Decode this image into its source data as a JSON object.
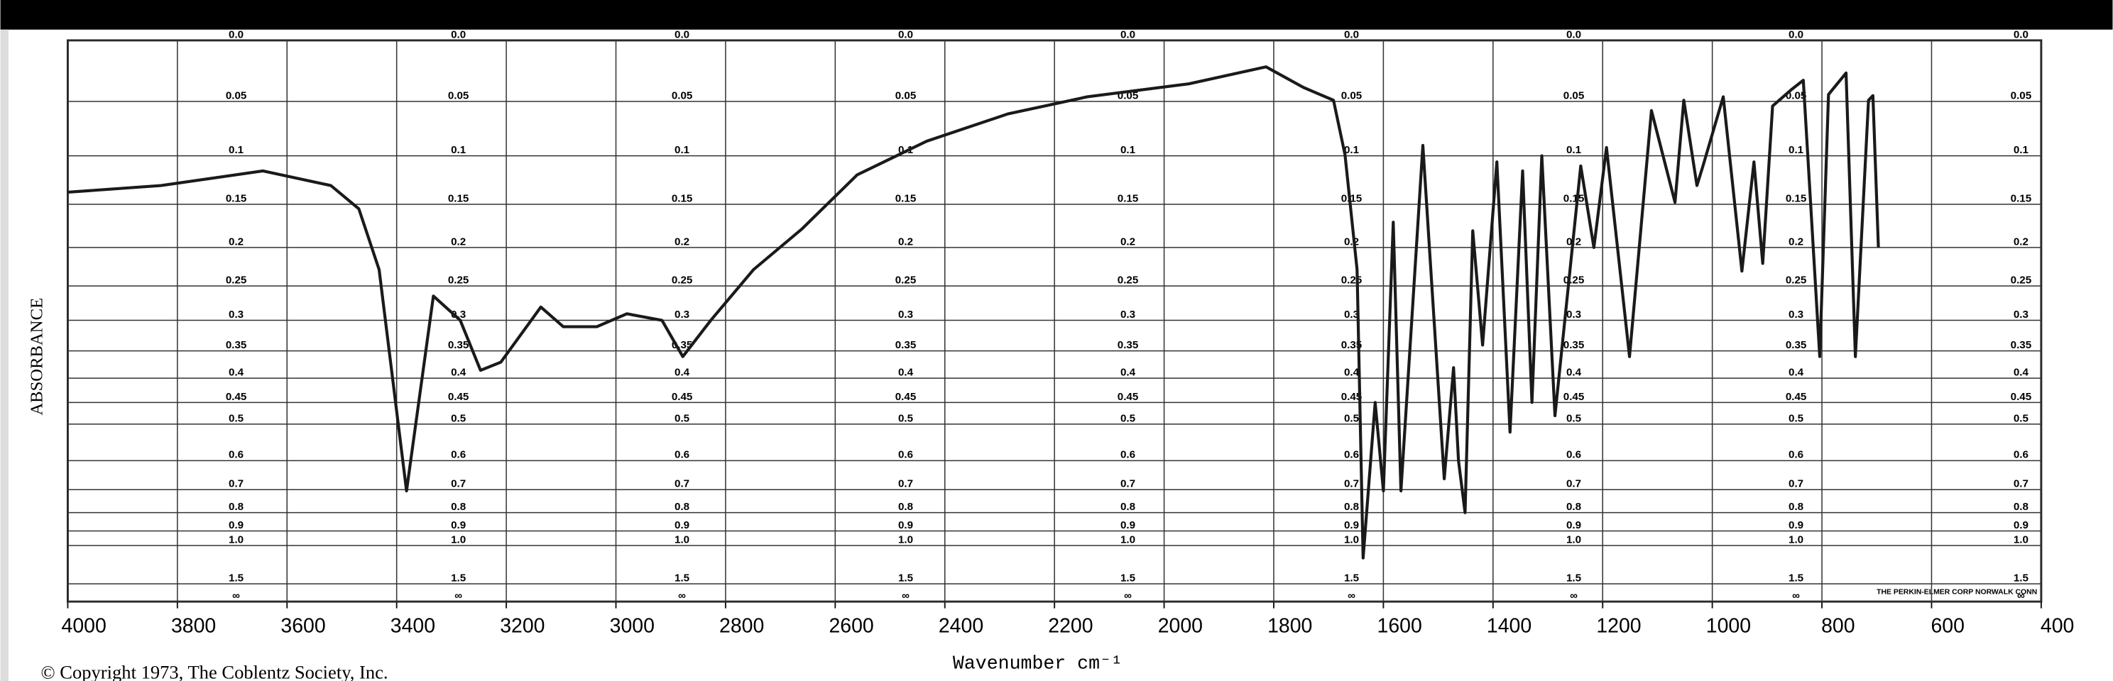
{
  "chart_data": {
    "type": "line",
    "x_label": "Wavenumber cm⁻¹",
    "y_label": "ABSORBANCE",
    "copyright": "© Copyright 1973, The Coblentz Society, Inc.",
    "maker_note": "THE PERKIN-ELMER CORP NORWALK CONN",
    "color": "#1a1a1a",
    "grid": true,
    "yscale": "transmittance",
    "xlim": [
      4000,
      400
    ],
    "xticks": [
      4000,
      3800,
      3600,
      3400,
      3200,
      3000,
      2800,
      2600,
      2400,
      2200,
      2000,
      1800,
      1600,
      1400,
      1200,
      1000,
      800,
      600,
      400
    ],
    "ylim": [
      0,
      "Infinity"
    ],
    "yticks": [
      {
        "value": 0,
        "label": "0.0"
      },
      0.05,
      0.1,
      0.15,
      0.2,
      0.25,
      0.3,
      0.35,
      0.4,
      0.45,
      0.5,
      0.6,
      0.7,
      0.8,
      0.9,
      {
        "value": 1,
        "label": "1.0"
      },
      1.5,
      {
        "value": "Infinity",
        "label": "∞"
      }
    ],
    "x": [
      4000,
      3830,
      3644,
      3520,
      3469,
      3432,
      3382,
      3333,
      3284,
      3247,
      3210,
      3137,
      3096,
      3035,
      2980,
      2916,
      2878,
      2827,
      2749,
      2661,
      2560,
      2433,
      2285,
      2140,
      1955,
      1814,
      1746,
      1691,
      1670,
      1648,
      1637,
      1615,
      1600,
      1582,
      1568,
      1528,
      1489,
      1472,
      1463,
      1451,
      1437,
      1419,
      1393,
      1369,
      1346,
      1329,
      1311,
      1287,
      1240,
      1216,
      1193,
      1151,
      1111,
      1068,
      1052,
      1028,
      1017,
      980,
      946,
      924,
      908,
      890,
      856,
      834,
      804,
      788,
      756,
      739,
      715,
      707,
      697
    ],
    "values": [
      0.137,
      0.13,
      0.115,
      0.13,
      0.155,
      0.228,
      0.705,
      0.264,
      0.3,
      0.385,
      0.37,
      0.28,
      0.31,
      0.31,
      0.29,
      0.3,
      0.36,
      0.3,
      0.228,
      0.178,
      0.119,
      0.086,
      0.061,
      0.046,
      0.035,
      0.021,
      0.038,
      0.049,
      0.099,
      0.228,
      1.11,
      0.45,
      0.705,
      0.17,
      0.705,
      0.09,
      0.66,
      0.38,
      0.6,
      0.8,
      0.18,
      0.34,
      0.106,
      0.52,
      0.115,
      0.45,
      0.1,
      0.48,
      0.11,
      0.2,
      0.092,
      0.36,
      0.058,
      0.148,
      0.049,
      0.13,
      0.11,
      0.046,
      0.23,
      0.106,
      0.22,
      0.054,
      0.04,
      0.032,
      0.36,
      0.044,
      0.026,
      0.36,
      0.049,
      0.045,
      0.2
    ]
  }
}
